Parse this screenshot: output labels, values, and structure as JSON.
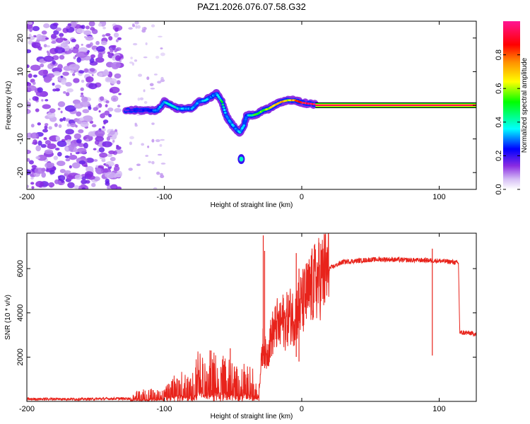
{
  "figure_title": "PAZ1.2026.076.07.58.G32",
  "chart_data": [
    {
      "type": "heatmap",
      "panel": "top",
      "xlabel": "Height of straight line (km)",
      "ylabel": "Frequency (Hz)",
      "xlim": [
        -200,
        127
      ],
      "ylim": [
        -25,
        25
      ],
      "xticks": [
        -200,
        -100,
        0,
        100
      ],
      "xtick_labels": [
        "-200",
        "-100",
        "0",
        "100"
      ],
      "yticks": [
        -20,
        -10,
        0,
        10,
        20
      ],
      "ytick_labels": [
        "-20",
        "-10",
        "0",
        "10",
        "20"
      ],
      "noise_region_km": [
        -200,
        -132
      ],
      "scattered_noise_km": [
        -125,
        -100
      ],
      "ridge": {
        "x": [
          -128,
          -120,
          -112,
          -105,
          -100,
          -95,
          -90,
          -85,
          -80,
          -75,
          -70,
          -66,
          -62,
          -58,
          -55,
          -52,
          -48,
          -45,
          -42,
          -40,
          -36,
          -32,
          -28,
          -24,
          -20,
          -15,
          -10,
          -5,
          0,
          5,
          10
        ],
        "y": [
          -1.5,
          -1.5,
          -1.5,
          -1.5,
          1,
          0,
          -1,
          -1,
          -1,
          1,
          1.5,
          2.5,
          3.5,
          1,
          -3,
          -5,
          -7,
          -8,
          -6,
          -3,
          -3,
          -2.5,
          -1.5,
          -1,
          0,
          1,
          1.5,
          1.5,
          0.8,
          0.5,
          0.3
        ],
        "amplitude": [
          0.18,
          0.22,
          0.2,
          0.3,
          0.35,
          0.4,
          0.35,
          0.3,
          0.3,
          0.32,
          0.35,
          0.28,
          0.3,
          0.45,
          0.3,
          0.32,
          0.3,
          0.35,
          0.3,
          0.28,
          0.45,
          0.55,
          0.5,
          0.6,
          0.65,
          0.7,
          0.65,
          0.8,
          0.9,
          0.95,
          0.95
        ]
      },
      "isolated_blob": {
        "x": -44,
        "y": -16,
        "amplitude": 0.4
      },
      "steady_line": {
        "x_start": 10,
        "x_end": 127,
        "y": 0,
        "amplitude": 0.95
      },
      "colorbar": {
        "label": "Normalized spectral amplitude",
        "range": [
          0,
          1
        ],
        "ticks": [
          0,
          0.2,
          0.4,
          0.6,
          0.8
        ],
        "tick_labels": [
          "0.0",
          "0.2",
          "0.4",
          "0.6",
          "0.8"
        ],
        "colormap": "rainbow (white-violet-blue-cyan-green-yellow-orange-red-magenta)"
      }
    },
    {
      "type": "line",
      "panel": "bottom",
      "xlabel": "Height of straight line (km)",
      "ylabel": "SNR (10 * v/v)",
      "xlim": [
        -200,
        127
      ],
      "ylim": [
        0,
        7600
      ],
      "xticks": [
        -200,
        -100,
        0,
        100
      ],
      "xtick_labels": [
        "-200",
        "-100",
        "0",
        "100"
      ],
      "yticks": [
        2000,
        4000,
        6000
      ],
      "ytick_labels": [
        "2000",
        "4000",
        "6000"
      ],
      "series": [
        {
          "name": "SNR",
          "color": "#e8231b",
          "x": [
            -200,
            -180,
            -160,
            -140,
            -125,
            -120,
            -110,
            -100,
            -90,
            -80,
            -75,
            -70,
            -65,
            -60,
            -55,
            -50,
            -45,
            -40,
            -35,
            -31,
            -28,
            -26,
            -24,
            -22,
            -20,
            -18,
            -16,
            -14,
            -12,
            -10,
            -8,
            -6,
            -4,
            -2,
            0,
            5,
            10,
            15,
            20,
            25,
            30,
            40,
            50,
            60,
            70,
            80,
            90,
            100,
            110,
            114,
            115,
            120,
            127
          ],
          "y": [
            100,
            110,
            100,
            120,
            130,
            250,
            350,
            300,
            800,
            600,
            1300,
            900,
            1400,
            1000,
            1200,
            900,
            800,
            1000,
            800,
            700,
            2600,
            2000,
            2400,
            3000,
            3200,
            3500,
            3300,
            3700,
            3500,
            3800,
            3900,
            3800,
            4000,
            4200,
            4400,
            4900,
            5400,
            5700,
            6000,
            6150,
            6300,
            6350,
            6400,
            6420,
            6400,
            6380,
            6380,
            6350,
            6300,
            6250,
            3100,
            3100,
            3050
          ]
        }
      ],
      "spikes": [
        {
          "x": -28,
          "y": 7500
        },
        {
          "x": -27,
          "y": 6800
        },
        {
          "x": -66,
          "y": 2300
        },
        {
          "x": -52,
          "y": 2400
        },
        {
          "x": -4,
          "y": 6700
        },
        {
          "x": -2,
          "y": 6000
        },
        {
          "x": 95,
          "y": 6900
        }
      ]
    }
  ]
}
